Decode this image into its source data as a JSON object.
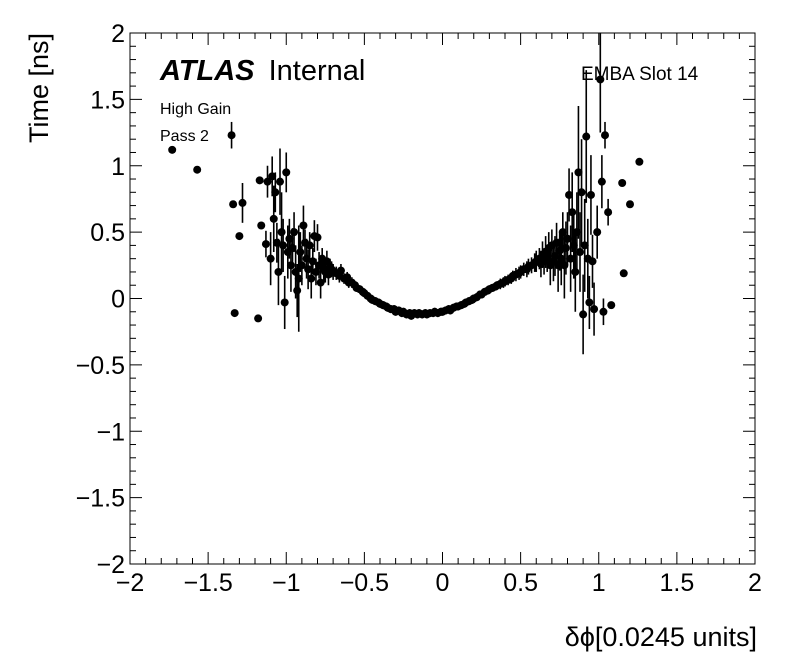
{
  "chart_data": {
    "type": "scatter",
    "xlabel": "δϕ[0.0245 units]",
    "ylabel": "Time [ns]",
    "xlim": [
      -2,
      2
    ],
    "ylim": [
      -2,
      2
    ],
    "x_ticks": [
      "−2",
      "−1.5",
      "−1",
      "−0.5",
      "0",
      "0.5",
      "1",
      "1.5",
      "2"
    ],
    "y_ticks": [
      "−2",
      "−1.5",
      "−1",
      "−0.5",
      "0",
      "0.5",
      "1",
      "1.5",
      "2"
    ],
    "grid": false,
    "error_bars": true,
    "annotations": {
      "experiment": "ATLAS",
      "status": "Internal",
      "line1": "High Gain",
      "line2": "Pass 2",
      "region": "EMBA Slot 14"
    },
    "points": [
      [
        -1.73,
        1.12,
        0.0
      ],
      [
        -1.57,
        0.97,
        0.0
      ],
      [
        -1.35,
        1.23,
        0.1
      ],
      [
        -1.34,
        0.71,
        0.0
      ],
      [
        -1.33,
        -0.11,
        0.0
      ],
      [
        -1.3,
        0.47,
        0.0
      ],
      [
        -1.28,
        0.72,
        0.15
      ],
      [
        -1.18,
        -0.15,
        0.0
      ],
      [
        -1.17,
        0.89,
        0.0
      ],
      [
        -1.16,
        0.55,
        0.0
      ],
      [
        -1.13,
        0.41,
        0.1
      ],
      [
        -1.12,
        0.88,
        0.12
      ],
      [
        -1.1,
        0.3,
        0.2
      ],
      [
        -1.09,
        0.92,
        0.15
      ],
      [
        -1.08,
        0.6,
        0.25
      ],
      [
        -1.07,
        0.8,
        0.15
      ],
      [
        -1.06,
        0.42,
        0.15
      ],
      [
        -1.05,
        0.2,
        0.25
      ],
      [
        -1.04,
        0.88,
        0.25
      ],
      [
        -1.03,
        0.5,
        0.3
      ],
      [
        -1.02,
        0.4,
        0.2
      ],
      [
        -1.01,
        -0.03,
        0.2
      ],
      [
        -1.0,
        0.95,
        0.15
      ],
      [
        -0.99,
        0.35,
        0.2
      ],
      [
        -0.98,
        0.45,
        0.15
      ],
      [
        -0.97,
        0.25,
        0.2
      ],
      [
        -0.96,
        0.38,
        0.15
      ],
      [
        -0.95,
        0.5,
        0.15
      ],
      [
        -0.94,
        0.2,
        0.2
      ],
      [
        -0.93,
        0.06,
        0.2
      ],
      [
        -0.92,
        0.15,
        0.4
      ],
      [
        -0.91,
        0.35,
        0.15
      ],
      [
        -0.9,
        0.25,
        0.15
      ],
      [
        -0.89,
        0.55,
        0.15
      ],
      [
        -0.88,
        0.42,
        0.1
      ],
      [
        -0.87,
        0.3,
        0.15
      ],
      [
        -0.86,
        0.22,
        0.15
      ],
      [
        -0.85,
        0.4,
        0.1
      ],
      [
        -0.84,
        0.15,
        0.15
      ],
      [
        -0.83,
        0.28,
        0.1
      ],
      [
        -0.82,
        0.47,
        0.12
      ],
      [
        -0.81,
        0.2,
        0.1
      ],
      [
        -0.8,
        0.46,
        0.1
      ],
      [
        -0.79,
        0.25,
        0.1
      ],
      [
        -0.78,
        0.12,
        0.12
      ],
      [
        -0.77,
        0.3,
        0.08
      ],
      [
        -0.76,
        0.22,
        0.1
      ],
      [
        -0.75,
        0.2,
        0.08
      ],
      [
        -0.74,
        0.28,
        0.08
      ],
      [
        -0.73,
        0.18,
        0.08
      ],
      [
        -0.72,
        0.24,
        0.06
      ],
      [
        -0.71,
        0.22,
        0.06
      ],
      [
        -0.7,
        0.2,
        0.06
      ],
      [
        -0.68,
        0.19,
        0.05
      ],
      [
        -0.66,
        0.17,
        0.05
      ],
      [
        -0.65,
        0.21,
        0.05
      ],
      [
        -0.63,
        0.15,
        0.04
      ],
      [
        -0.61,
        0.16,
        0.04
      ],
      [
        -0.6,
        0.12,
        0.04
      ],
      [
        -0.58,
        0.12,
        0.04
      ],
      [
        -0.56,
        0.1,
        0.03
      ],
      [
        -0.55,
        0.08,
        0.03
      ],
      [
        -0.53,
        0.07,
        0.03
      ],
      [
        -0.51,
        0.05,
        0.03
      ],
      [
        -0.5,
        0.04,
        0.03
      ],
      [
        -0.48,
        0.02,
        0.03
      ],
      [
        -0.46,
        0.0,
        0.03
      ],
      [
        -0.45,
        -0.01,
        0.03
      ],
      [
        -0.43,
        -0.02,
        0.03
      ],
      [
        -0.41,
        -0.03,
        0.03
      ],
      [
        -0.4,
        -0.04,
        0.03
      ],
      [
        -0.38,
        -0.05,
        0.03
      ],
      [
        -0.36,
        -0.06,
        0.03
      ],
      [
        -0.35,
        -0.07,
        0.03
      ],
      [
        -0.33,
        -0.08,
        0.03
      ],
      [
        -0.31,
        -0.08,
        0.03
      ],
      [
        -0.3,
        -0.1,
        0.03
      ],
      [
        -0.28,
        -0.09,
        0.03
      ],
      [
        -0.26,
        -0.11,
        0.03
      ],
      [
        -0.25,
        -0.1,
        0.03
      ],
      [
        -0.23,
        -0.12,
        0.03
      ],
      [
        -0.21,
        -0.11,
        0.03
      ],
      [
        -0.2,
        -0.13,
        0.03
      ],
      [
        -0.18,
        -0.11,
        0.03
      ],
      [
        -0.16,
        -0.12,
        0.03
      ],
      [
        -0.15,
        -0.11,
        0.03
      ],
      [
        -0.13,
        -0.12,
        0.03
      ],
      [
        -0.11,
        -0.11,
        0.03
      ],
      [
        -0.1,
        -0.12,
        0.03
      ],
      [
        -0.08,
        -0.11,
        0.03
      ],
      [
        -0.06,
        -0.11,
        0.03
      ],
      [
        -0.05,
        -0.1,
        0.03
      ],
      [
        -0.03,
        -0.11,
        0.03
      ],
      [
        -0.01,
        -0.1,
        0.03
      ],
      [
        0.0,
        -0.1,
        0.03
      ],
      [
        0.02,
        -0.09,
        0.03
      ],
      [
        0.04,
        -0.08,
        0.03
      ],
      [
        0.05,
        -0.09,
        0.03
      ],
      [
        0.07,
        -0.07,
        0.03
      ],
      [
        0.09,
        -0.06,
        0.03
      ],
      [
        0.1,
        -0.06,
        0.03
      ],
      [
        0.12,
        -0.05,
        0.03
      ],
      [
        0.14,
        -0.04,
        0.03
      ],
      [
        0.15,
        -0.03,
        0.03
      ],
      [
        0.17,
        -0.02,
        0.03
      ],
      [
        0.19,
        -0.01,
        0.03
      ],
      [
        0.2,
        0.0,
        0.03
      ],
      [
        0.22,
        0.01,
        0.03
      ],
      [
        0.24,
        0.03,
        0.03
      ],
      [
        0.25,
        0.03,
        0.03
      ],
      [
        0.27,
        0.05,
        0.03
      ],
      [
        0.29,
        0.06,
        0.03
      ],
      [
        0.3,
        0.07,
        0.03
      ],
      [
        0.32,
        0.08,
        0.03
      ],
      [
        0.34,
        0.09,
        0.03
      ],
      [
        0.35,
        0.1,
        0.03
      ],
      [
        0.37,
        0.11,
        0.04
      ],
      [
        0.39,
        0.12,
        0.04
      ],
      [
        0.4,
        0.13,
        0.04
      ],
      [
        0.42,
        0.14,
        0.04
      ],
      [
        0.44,
        0.15,
        0.04
      ],
      [
        0.45,
        0.17,
        0.04
      ],
      [
        0.47,
        0.18,
        0.05
      ],
      [
        0.49,
        0.19,
        0.05
      ],
      [
        0.5,
        0.2,
        0.05
      ],
      [
        0.52,
        0.22,
        0.05
      ],
      [
        0.54,
        0.22,
        0.06
      ],
      [
        0.55,
        0.24,
        0.06
      ],
      [
        0.57,
        0.25,
        0.06
      ],
      [
        0.59,
        0.27,
        0.07
      ],
      [
        0.6,
        0.28,
        0.08
      ],
      [
        0.62,
        0.3,
        0.08
      ],
      [
        0.63,
        0.26,
        0.1
      ],
      [
        0.64,
        0.33,
        0.1
      ],
      [
        0.65,
        0.28,
        0.1
      ],
      [
        0.66,
        0.35,
        0.12
      ],
      [
        0.67,
        0.3,
        0.1
      ],
      [
        0.68,
        0.38,
        0.12
      ],
      [
        0.69,
        0.25,
        0.15
      ],
      [
        0.7,
        0.4,
        0.12
      ],
      [
        0.71,
        0.28,
        0.15
      ],
      [
        0.72,
        0.32,
        0.15
      ],
      [
        0.73,
        0.42,
        0.15
      ],
      [
        0.74,
        0.25,
        0.2
      ],
      [
        0.75,
        0.36,
        0.15
      ],
      [
        0.76,
        0.3,
        0.2
      ],
      [
        0.77,
        0.5,
        0.15
      ],
      [
        0.78,
        0.25,
        0.25
      ],
      [
        0.79,
        0.38,
        0.2
      ],
      [
        0.8,
        0.45,
        0.2
      ],
      [
        0.81,
        0.78,
        0.2
      ],
      [
        0.82,
        0.3,
        0.25
      ],
      [
        0.83,
        0.65,
        0.3
      ],
      [
        0.84,
        0.4,
        0.25
      ],
      [
        0.85,
        0.2,
        0.3
      ],
      [
        0.86,
        0.5,
        0.3
      ],
      [
        0.87,
        0.95,
        0.5
      ],
      [
        0.88,
        0.35,
        0.3
      ],
      [
        0.89,
        0.8,
        0.4
      ],
      [
        0.9,
        -0.12,
        0.3
      ],
      [
        0.91,
        0.4,
        0.35
      ],
      [
        0.92,
        1.22,
        0.5
      ],
      [
        0.93,
        0.3,
        0.3
      ],
      [
        0.94,
        -0.03,
        0.2
      ],
      [
        0.95,
        0.78,
        0.3
      ],
      [
        0.96,
        0.28,
        0.2
      ],
      [
        0.97,
        -0.08,
        0.2
      ],
      [
        0.99,
        0.5,
        0.2
      ],
      [
        1.01,
        1.65,
        0.4
      ],
      [
        1.02,
        0.88,
        0.2
      ],
      [
        1.03,
        -0.1,
        0.1
      ],
      [
        1.04,
        1.23,
        0.1
      ],
      [
        1.06,
        0.65,
        0.1
      ],
      [
        1.08,
        -0.05,
        0.0
      ],
      [
        1.15,
        0.87,
        0.0
      ],
      [
        1.16,
        0.19,
        0.0
      ],
      [
        1.2,
        0.71,
        0.0
      ],
      [
        1.26,
        1.03,
        0.0
      ]
    ]
  }
}
